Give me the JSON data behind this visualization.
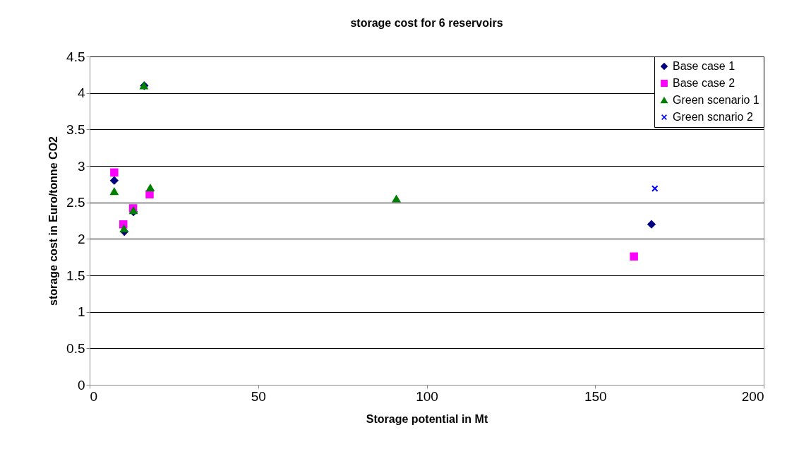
{
  "chart_data": {
    "type": "scatter",
    "title": "storage cost for 6 reservoirs",
    "xlabel": "Storage potential in Mt",
    "ylabel": "storage cost in Euro/tonne CO2",
    "xlim": [
      0,
      200
    ],
    "xticks": [
      0,
      50,
      100,
      150,
      200
    ],
    "ylim": [
      0,
      4.5
    ],
    "yticks": [
      0,
      0.5,
      1,
      1.5,
      2,
      2.5,
      3,
      3.5,
      4,
      4.5
    ],
    "grid": "y",
    "legend": "top right",
    "series": [
      {
        "name": "Base case 1",
        "color": "#000080",
        "marker": "diamond",
        "x": [
          7.3,
          10.3,
          13,
          16.2,
          166.7
        ],
        "values": [
          2.8,
          2.1,
          2.37,
          4.1,
          2.2
        ]
      },
      {
        "name": "Base case 2",
        "color": "#ff00ff",
        "marker": "square",
        "x": [
          7.3,
          10,
          12.9,
          17.8,
          161.5
        ],
        "values": [
          2.91,
          2.2,
          2.42,
          2.61,
          1.76
        ]
      },
      {
        "name": "Green scenario 1",
        "color": "#008000",
        "marker": "triangle",
        "x": [
          7.3,
          10.2,
          13,
          16.1,
          18,
          91
        ],
        "values": [
          2.65,
          2.14,
          2.39,
          4.1,
          2.7,
          2.55
        ]
      },
      {
        "name": "Green scnario 2",
        "color": "#0000ff",
        "marker": "cross",
        "x": [
          167.7
        ],
        "values": [
          2.69
        ]
      }
    ]
  }
}
